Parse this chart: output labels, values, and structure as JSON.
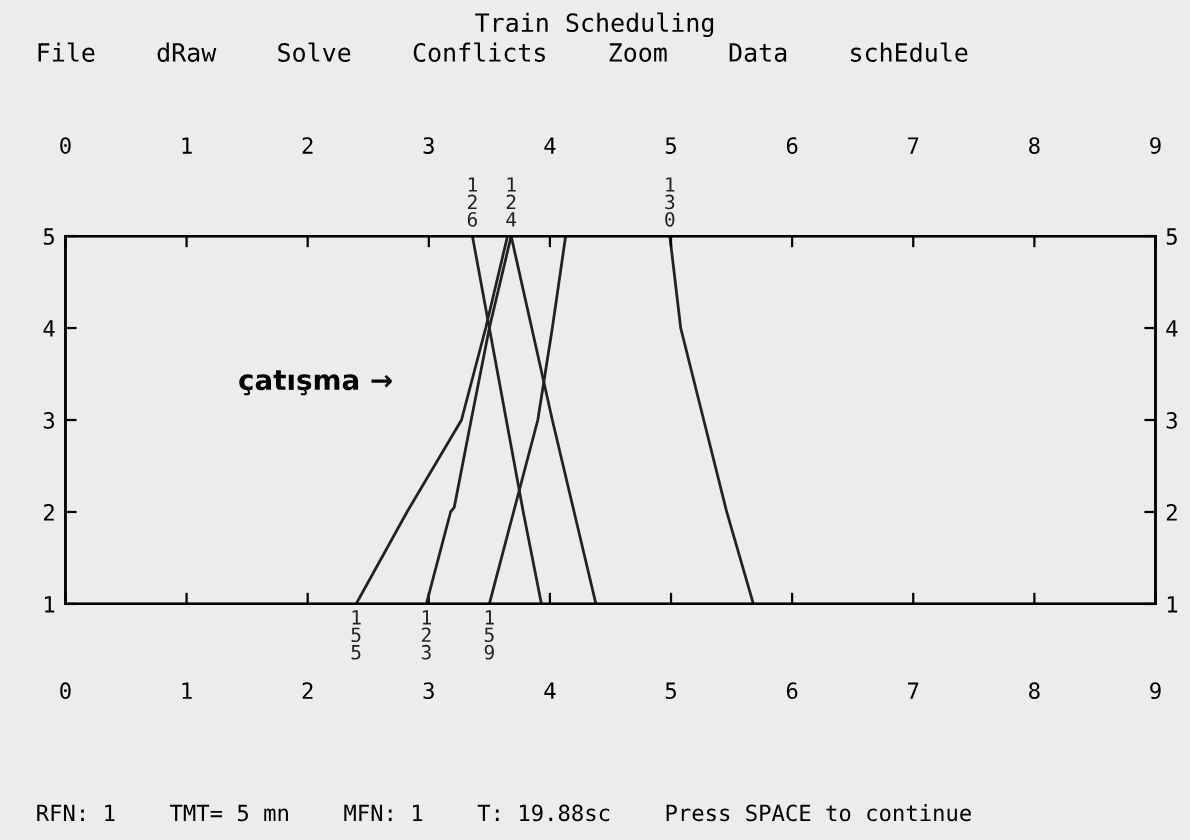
{
  "chart_data": {
    "type": "line",
    "title": "Train Scheduling",
    "annotations": [
      "File    dRaw    Solve    Conflicts    Zoom    Data    schEdule",
      "RFN: 1    TMT= 5 mn    MFN: 1    T: 19.88sc    Press SPACE to continue",
      "çatışma →"
    ],
    "series": [
      {
        "name": "126",
        "color": "#222222",
        "x": [
          3.36,
          3.5,
          3.64,
          3.78,
          3.93
        ],
        "values": [
          5,
          4,
          3,
          2,
          1
        ]
      },
      {
        "name": "124",
        "color": "#222222",
        "x": [
          3.68,
          3.85,
          4.02,
          4.2,
          4.38
        ],
        "values": [
          5,
          4,
          3,
          2,
          1
        ]
      },
      {
        "name": "130",
        "color": "#222222",
        "x": [
          4.99,
          5.08,
          5.27,
          5.46,
          5.68
        ],
        "values": [
          5,
          4,
          3,
          2,
          1
        ]
      },
      {
        "name": "155",
        "color": "#222222",
        "x": [
          2.4,
          2.82,
          3.27,
          3.47,
          3.65
        ],
        "values": [
          1,
          2,
          3,
          4,
          5
        ]
      },
      {
        "name": "123",
        "color": "#222222",
        "x": [
          2.98,
          3.18,
          3.21,
          3.35,
          3.5,
          3.68
        ],
        "values": [
          1,
          2,
          2.05,
          3,
          4,
          5
        ]
      },
      {
        "name": "159",
        "color": "#222222",
        "x": [
          3.5,
          3.7,
          3.9,
          4.02,
          4.13
        ],
        "values": [
          1,
          2,
          3,
          4,
          5
        ]
      }
    ],
    "xlim": [
      0,
      9
    ],
    "xticks": [
      0,
      1,
      2,
      3,
      4,
      5,
      6,
      7,
      8,
      9
    ],
    "x2lim": [
      0,
      9
    ],
    "x2ticks": [
      0,
      1,
      2,
      3,
      4,
      5,
      6,
      7,
      8,
      9
    ],
    "ylim": [
      1,
      5
    ],
    "yticks": [
      1,
      2,
      3,
      4,
      5
    ],
    "y2lim": [
      1,
      5
    ],
    "y2ticks": [
      1,
      2,
      3,
      4,
      5
    ],
    "grid": false,
    "legend": false,
    "marker": "none",
    "line_style": "solid"
  }
}
